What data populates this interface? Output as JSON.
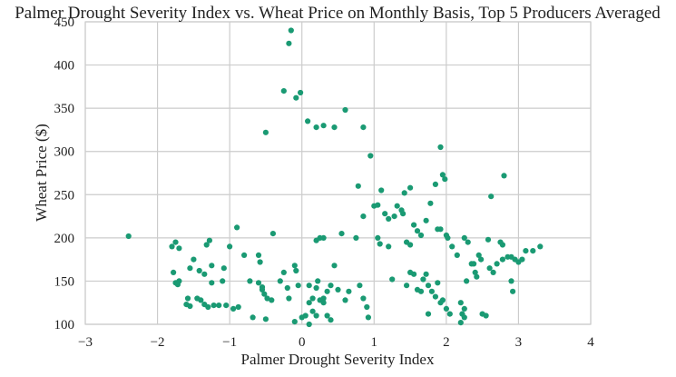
{
  "chart_data": {
    "type": "scatter",
    "title": "Palmer Drought Severity Index vs. Wheat Price on Monthly Basis, Top 5 Producers Averaged",
    "xlabel": "Palmer Drought Severity Index",
    "ylabel": "Wheat Price ($)",
    "xlim": [
      -3,
      4
    ],
    "ylim": [
      100,
      450
    ],
    "xticks": [
      -3,
      -2,
      -1,
      0,
      1,
      2,
      3,
      4
    ],
    "yticks": [
      100,
      150,
      200,
      250,
      300,
      350,
      400,
      450
    ],
    "xtick_labels": [
      "−3",
      "−2",
      "−1",
      "0",
      "1",
      "2",
      "3",
      "4"
    ],
    "ytick_labels": [
      "100",
      "150",
      "200",
      "250",
      "300",
      "350",
      "400",
      "450"
    ],
    "grid": true,
    "marker_color": "#1a9a73",
    "points": [
      [
        -2.4,
        202
      ],
      [
        -1.8,
        190
      ],
      [
        -1.75,
        195
      ],
      [
        -1.7,
        188
      ],
      [
        -1.78,
        160
      ],
      [
        -1.75,
        148
      ],
      [
        -1.72,
        146
      ],
      [
        -1.7,
        150
      ],
      [
        -1.55,
        165
      ],
      [
        -1.5,
        175
      ],
      [
        -1.42,
        162
      ],
      [
        -1.32,
        192
      ],
      [
        -1.28,
        197
      ],
      [
        -1.25,
        168
      ],
      [
        -1.35,
        158
      ],
      [
        -1.45,
        130
      ],
      [
        -1.58,
        130
      ],
      [
        -1.6,
        123
      ],
      [
        -1.55,
        121
      ],
      [
        -1.4,
        128
      ],
      [
        -1.35,
        123
      ],
      [
        -1.3,
        120
      ],
      [
        -1.25,
        148
      ],
      [
        -1.22,
        122
      ],
      [
        -1.15,
        122
      ],
      [
        -1.1,
        150
      ],
      [
        -1.08,
        165
      ],
      [
        -1.05,
        122
      ],
      [
        -1.0,
        190
      ],
      [
        -0.95,
        118
      ],
      [
        -0.9,
        212
      ],
      [
        -0.88,
        120
      ],
      [
        -0.8,
        180
      ],
      [
        -0.72,
        150
      ],
      [
        -0.68,
        108
      ],
      [
        -0.6,
        180
      ],
      [
        -0.58,
        172
      ],
      [
        -0.55,
        140
      ],
      [
        -0.52,
        135
      ],
      [
        -0.48,
        130
      ],
      [
        -0.42,
        128
      ],
      [
        -0.4,
        205
      ],
      [
        -0.5,
        106
      ],
      [
        -0.6,
        148
      ],
      [
        -0.55,
        143
      ],
      [
        -0.3,
        150
      ],
      [
        -0.25,
        160
      ],
      [
        -0.2,
        142
      ],
      [
        -0.18,
        130
      ],
      [
        -0.1,
        168
      ],
      [
        -0.08,
        162
      ],
      [
        -0.05,
        145
      ],
      [
        0.0,
        108
      ],
      [
        0.05,
        110
      ],
      [
        0.1,
        125
      ],
      [
        0.15,
        130
      ],
      [
        0.2,
        142
      ],
      [
        0.22,
        150
      ],
      [
        0.3,
        130
      ],
      [
        0.35,
        138
      ],
      [
        0.4,
        145
      ],
      [
        0.45,
        168
      ],
      [
        0.5,
        140
      ],
      [
        0.55,
        205
      ],
      [
        0.6,
        128
      ],
      [
        0.65,
        138
      ],
      [
        0.75,
        200
      ],
      [
        0.8,
        145
      ],
      [
        0.85,
        130
      ],
      [
        0.9,
        120
      ],
      [
        0.92,
        108
      ],
      [
        0.2,
        197
      ],
      [
        0.25,
        200
      ],
      [
        0.3,
        200
      ],
      [
        0.1,
        145
      ],
      [
        0.15,
        115
      ],
      [
        0.2,
        110
      ],
      [
        0.25,
        128
      ],
      [
        0.3,
        125
      ],
      [
        0.35,
        110
      ],
      [
        0.4,
        105
      ],
      [
        -0.1,
        103
      ],
      [
        0.1,
        100
      ],
      [
        -0.15,
        440
      ],
      [
        -0.18,
        425
      ],
      [
        -0.25,
        370
      ],
      [
        -0.08,
        362
      ],
      [
        -0.02,
        368
      ],
      [
        0.08,
        335
      ],
      [
        0.2,
        328
      ],
      [
        0.3,
        330
      ],
      [
        0.45,
        328
      ],
      [
        0.6,
        348
      ],
      [
        0.85,
        328
      ],
      [
        -0.5,
        322
      ],
      [
        0.95,
        295
      ],
      [
        0.78,
        260
      ],
      [
        0.85,
        225
      ],
      [
        1.0,
        237
      ],
      [
        1.05,
        238
      ],
      [
        1.1,
        255
      ],
      [
        1.15,
        228
      ],
      [
        1.2,
        222
      ],
      [
        1.28,
        225
      ],
      [
        1.32,
        237
      ],
      [
        1.38,
        232
      ],
      [
        1.4,
        228
      ],
      [
        1.42,
        252
      ],
      [
        1.5,
        258
      ],
      [
        1.55,
        215
      ],
      [
        1.6,
        208
      ],
      [
        1.65,
        203
      ],
      [
        1.72,
        220
      ],
      [
        1.78,
        240
      ],
      [
        1.85,
        262
      ],
      [
        1.88,
        210
      ],
      [
        1.92,
        305
      ],
      [
        1.95,
        273
      ],
      [
        1.98,
        268
      ],
      [
        2.0,
        203
      ],
      [
        2.02,
        200
      ],
      [
        1.92,
        210
      ],
      [
        1.05,
        200
      ],
      [
        1.08,
        193
      ],
      [
        1.2,
        190
      ],
      [
        1.45,
        195
      ],
      [
        1.5,
        192
      ],
      [
        1.25,
        152
      ],
      [
        1.45,
        145
      ],
      [
        1.5,
        160
      ],
      [
        1.55,
        158
      ],
      [
        1.6,
        140
      ],
      [
        1.65,
        138
      ],
      [
        1.68,
        152
      ],
      [
        1.72,
        158
      ],
      [
        1.75,
        145
      ],
      [
        1.8,
        138
      ],
      [
        1.85,
        132
      ],
      [
        1.88,
        148
      ],
      [
        1.92,
        125
      ],
      [
        1.95,
        128
      ],
      [
        2.0,
        118
      ],
      [
        2.05,
        112
      ],
      [
        2.08,
        190
      ],
      [
        2.15,
        180
      ],
      [
        2.2,
        125
      ],
      [
        2.22,
        112
      ],
      [
        2.25,
        118
      ],
      [
        2.28,
        150
      ],
      [
        2.35,
        170
      ],
      [
        2.4,
        160
      ],
      [
        2.42,
        155
      ],
      [
        2.45,
        180
      ],
      [
        2.48,
        175
      ],
      [
        2.5,
        112
      ],
      [
        2.55,
        110
      ],
      [
        2.58,
        198
      ],
      [
        2.6,
        165
      ],
      [
        2.62,
        248
      ],
      [
        2.65,
        160
      ],
      [
        2.7,
        170
      ],
      [
        2.75,
        195
      ],
      [
        2.78,
        192
      ],
      [
        2.8,
        272
      ],
      [
        2.85,
        178
      ],
      [
        2.9,
        150
      ],
      [
        2.92,
        138
      ],
      [
        2.95,
        175
      ],
      [
        3.0,
        172
      ],
      [
        3.05,
        175
      ],
      [
        3.1,
        185
      ],
      [
        3.2,
        185
      ],
      [
        3.3,
        190
      ],
      [
        1.75,
        112
      ],
      [
        2.2,
        102
      ],
      [
        2.25,
        108
      ],
      [
        2.25,
        200
      ],
      [
        2.3,
        195
      ],
      [
        2.38,
        170
      ],
      [
        2.78,
        175
      ],
      [
        2.9,
        178
      ]
    ]
  }
}
